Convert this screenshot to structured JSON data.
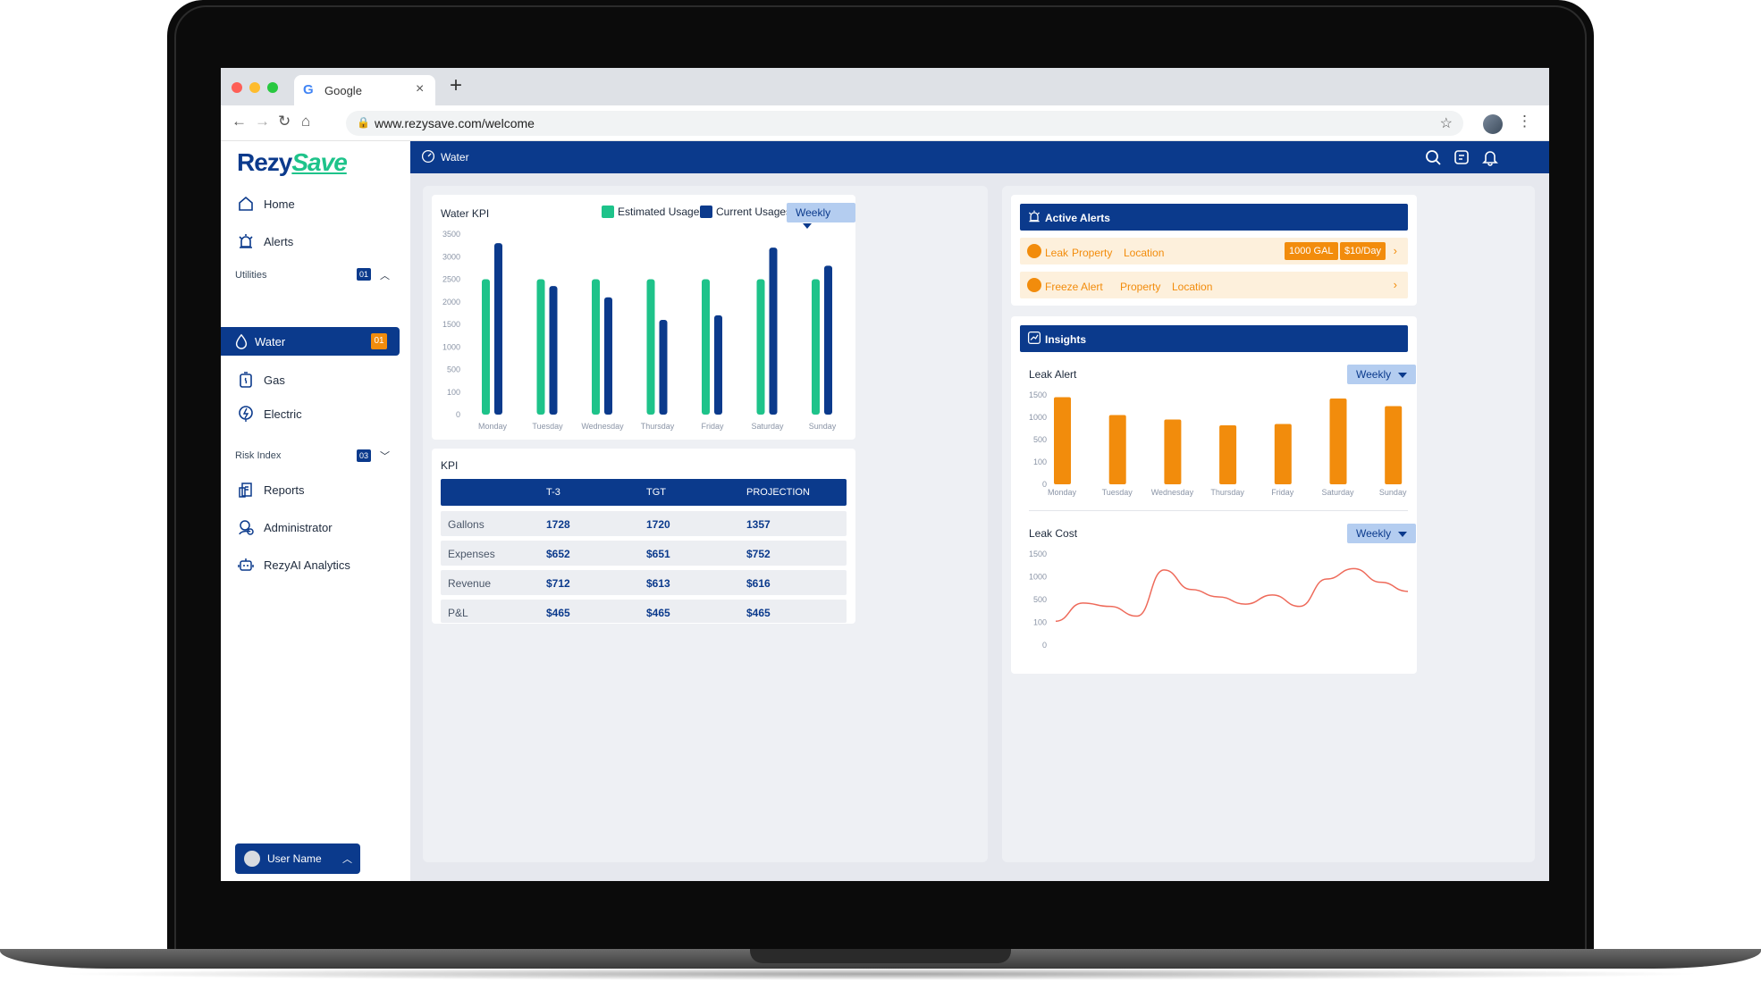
{
  "browser": {
    "tab_title": "Google",
    "tab_icon": "G",
    "url": "www.rezysave.com/welcome"
  },
  "sidebar": {
    "logo_part1": "Rezy",
    "logo_part2": "Save",
    "home": "Home",
    "alerts": "Alerts",
    "utilities_label": "Utilities",
    "utilities_badge": "01",
    "water": "Water",
    "water_badge": "01",
    "gas": "Gas",
    "electric": "Electric",
    "risk_label": "Risk Index",
    "risk_badge": "03",
    "reports": "Reports",
    "administrator": "Administrator",
    "analytics": "RezyAI Analytics",
    "user_name": "User Name"
  },
  "header": {
    "title": "Water"
  },
  "water_kpi": {
    "title": "Water KPI",
    "legend_estimated": "Estimated Usages",
    "legend_current": "Current Usages",
    "period": "Weekly"
  },
  "kpi_table": {
    "title": "KPI",
    "columns": [
      "T-3",
      "TGT",
      "PROJECTION"
    ],
    "rows": [
      {
        "label": "Gallons",
        "values": [
          "1728",
          "1720",
          "1357"
        ]
      },
      {
        "label": "Expenses",
        "values": [
          "$652",
          "$651",
          "$752"
        ]
      },
      {
        "label": "Revenue",
        "values": [
          "$712",
          "$613",
          "$616"
        ]
      },
      {
        "label": "P&L",
        "values": [
          "$465",
          "$465",
          "$465"
        ]
      }
    ]
  },
  "alerts_panel": {
    "title": "Active Alerts",
    "items": [
      {
        "type": "Leak",
        "property": "Property",
        "location": "Location",
        "amount": "1000 GAL",
        "cost": "$10/Day"
      },
      {
        "type": "Freeze Alert",
        "property": "Property",
        "location": "Location"
      }
    ]
  },
  "insights": {
    "title": "Insights",
    "leak_alert_title": "Leak Alert",
    "leak_alert_period": "Weekly",
    "leak_cost_title": "Leak Cost",
    "leak_cost_period": "Weekly"
  },
  "colors": {
    "brand": "#0b3a8c",
    "green": "#1ec38a",
    "orange": "#f28c0c",
    "line": "#ee6a5a"
  },
  "chart_data": [
    {
      "type": "bar",
      "title": "Water KPI",
      "categories": [
        "Monday",
        "Tuesday",
        "Wednesday",
        "Thursday",
        "Friday",
        "Saturday",
        "Sunday"
      ],
      "y_ticks": [
        "0",
        "100",
        "500",
        "1000",
        "1500",
        "2000",
        "2500",
        "3000",
        "3500"
      ],
      "series": [
        {
          "name": "Estimated Usages",
          "color": "#1ec38a",
          "values": [
            2500,
            2500,
            2500,
            2500,
            2500,
            2500,
            2500
          ]
        },
        {
          "name": "Current Usages",
          "color": "#0b3a8c",
          "values": [
            3300,
            2350,
            2100,
            1600,
            1700,
            3200,
            2800
          ]
        }
      ]
    },
    {
      "type": "bar",
      "title": "Leak Alert",
      "categories": [
        "Monday",
        "Tuesday",
        "Wednesday",
        "Thursday",
        "Friday",
        "Saturday",
        "Sunday"
      ],
      "y_ticks": [
        "0",
        "100",
        "500",
        "1000",
        "1500"
      ],
      "series": [
        {
          "name": "",
          "color": "#f28c0c",
          "values": [
            1450,
            1050,
            950,
            820,
            850,
            1420,
            1250
          ]
        }
      ]
    },
    {
      "type": "line",
      "title": "Leak Cost",
      "y_ticks": [
        "0",
        "100",
        "500",
        "1000",
        "1500"
      ],
      "series": [
        {
          "name": "",
          "color": "#ee6a5a",
          "values": [
            120,
            440,
            380,
            210,
            1150,
            720,
            560,
            420,
            600,
            380,
            950,
            1180,
            880,
            680
          ]
        }
      ]
    }
  ]
}
